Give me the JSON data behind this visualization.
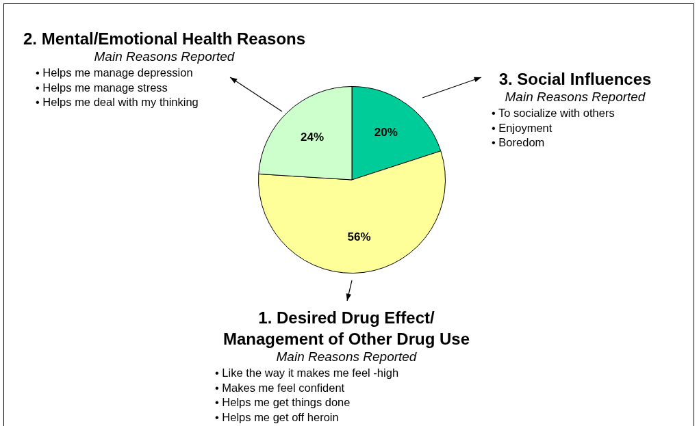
{
  "chart_data": {
    "type": "pie",
    "categories": [
      "3. Social Influences",
      "1. Desired Drug Effect/ Management of Other Drug Use",
      "2. Mental/Emotional Health Reasons"
    ],
    "values": [
      20,
      56,
      24
    ],
    "colors": [
      "#00cc99",
      "#ffff99",
      "#ccffcc"
    ],
    "value_labels": [
      "20%",
      "56%",
      "24%"
    ],
    "annotations": [
      "Main Reasons Reported\n• To socialize with others\n• Enjoyment\n• Boredom",
      "Main Reasons Reported\n• Like the way it makes me feel -high\n• Makes me feel confident\n• Helps me get things done\n• Helps me get off heroin",
      "Main Reasons Reported\n• Helps me manage depression\n• Helps me manage stress\n• Helps me deal with my thinking"
    ]
  }
}
